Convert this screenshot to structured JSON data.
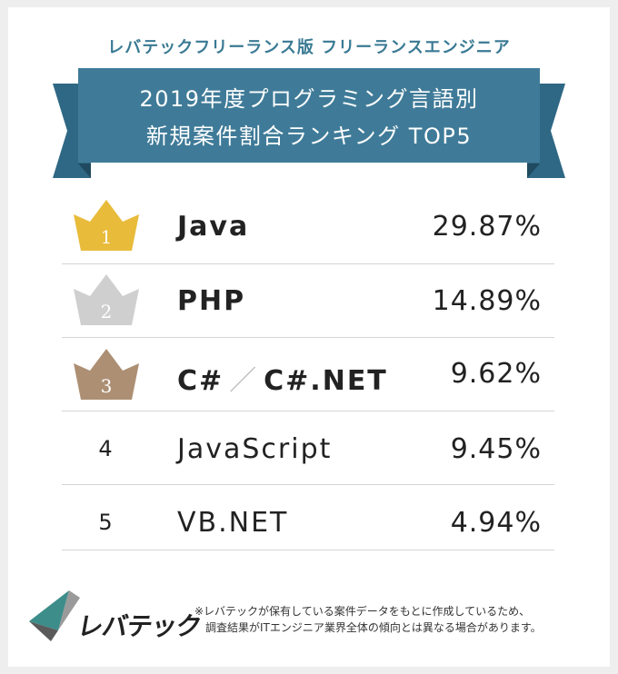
{
  "header": {
    "subtitle": "レバテックフリーランス版 フリーランスエンジニア",
    "title_line1": "2019年度プログラミング言語別",
    "title_line2": "新規案件割合ランキング TOP5"
  },
  "colors": {
    "ribbon": "#3f7b98",
    "ribbon_dark": "#2a5a72",
    "gold": "#e8bb3a",
    "silver": "#cfcfcf",
    "bronze": "#ad8f74"
  },
  "ranking": [
    {
      "rank": "1",
      "language": "Java",
      "share": "29.87%",
      "icon": "gold-crown-icon"
    },
    {
      "rank": "2",
      "language": "PHP",
      "share": "14.89%",
      "icon": "silver-crown-icon"
    },
    {
      "rank": "3",
      "language_a": "C#",
      "separator": "／",
      "language_b": "C#.NET",
      "share": "9.62%",
      "icon": "bronze-crown-icon"
    },
    {
      "rank": "4",
      "language": "JavaScript",
      "share": "9.45%"
    },
    {
      "rank": "5",
      "language": "VB.NET",
      "share": "4.94%"
    }
  ],
  "footer": {
    "logo_text": "レバテック",
    "note_line1": "※レバテックが保有している案件データをもとに作成しているため、",
    "note_line2": "調査結果がITエンジニア業界全体の傾向とは異なる場合があります。"
  }
}
